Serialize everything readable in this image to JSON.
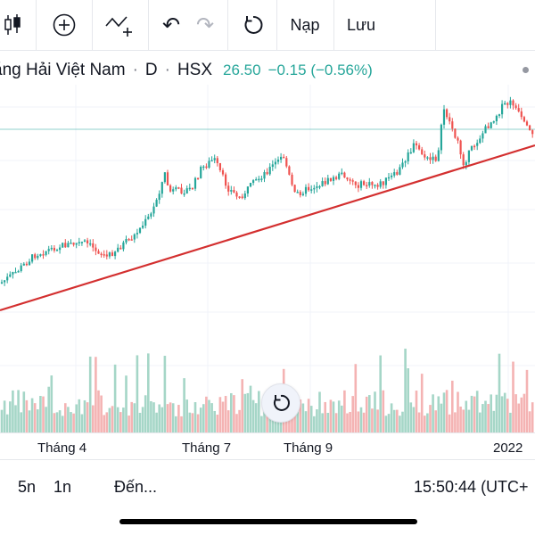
{
  "toolbar": {
    "undo_label": "↶",
    "redo_label": "↷",
    "replay_label": "↻",
    "load_label": "Nạp",
    "save_label": "Lưu"
  },
  "symbol": {
    "name": "ăng Hải Việt Nam",
    "sep1": "·",
    "interval": "D",
    "sep2": "·",
    "exchange": "HSX",
    "price": "26.50",
    "change": "−0.15 (−0.56%)"
  },
  "colors": {
    "up": "#26a69a",
    "down": "#ef5350",
    "trendline": "#d32f2f",
    "vol_up": "#a5d6c7",
    "vol_down": "#f4b3b3"
  },
  "time_axis": {
    "labels": [
      "Tháng 4",
      "Tháng 7",
      "Tháng 9",
      "2022"
    ]
  },
  "bottom_bar": {
    "range_5n": "5n",
    "range_1n": "1n",
    "goto": "Đến...",
    "clock": "15:50:44 (UTC+"
  },
  "chart_data": {
    "type": "candlestick",
    "x": [
      "Tháng 4",
      "Tháng 7",
      "Tháng 9",
      "2022"
    ],
    "price_anchors": [
      {
        "x": "start",
        "y": 18.5
      },
      {
        "x": "Tháng 4",
        "y": 20.5
      },
      {
        "x": "Tháng 7",
        "y": 24.0
      },
      {
        "x": "Tháng 9",
        "y": 22.8
      },
      {
        "x": "2022",
        "y": 27.5
      },
      {
        "x": "end",
        "y": 26.5
      }
    ],
    "last_price": 26.5
  }
}
